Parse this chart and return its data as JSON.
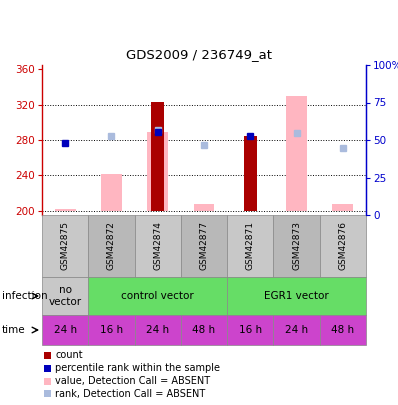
{
  "title": "GDS2009 / 236749_at",
  "samples": [
    "GSM42875",
    "GSM42872",
    "GSM42874",
    "GSM42877",
    "GSM42871",
    "GSM42873",
    "GSM42876"
  ],
  "ylim_left": [
    195,
    365
  ],
  "ylim_right": [
    0,
    100
  ],
  "yticks_left": [
    200,
    240,
    280,
    320,
    360
  ],
  "yticks_right": [
    0,
    25,
    50,
    75,
    100
  ],
  "yticklabels_right": [
    "0",
    "25",
    "50",
    "75",
    "100%"
  ],
  "count_values": [
    null,
    null,
    323,
    null,
    284,
    null,
    null
  ],
  "count_color": "#AA0000",
  "rank_values": [
    277,
    null,
    289,
    null,
    284,
    null,
    null
  ],
  "rank_color": "#0000BB",
  "absent_value_values": [
    202,
    241,
    289,
    208,
    null,
    330,
    207
  ],
  "absent_value_color": "#FFB6C1",
  "absent_rank_values": [
    null,
    284,
    291,
    274,
    null,
    288,
    271
  ],
  "absent_rank_color": "#AABBDD",
  "time_labels": [
    "24 h",
    "16 h",
    "24 h",
    "48 h",
    "16 h",
    "24 h",
    "48 h"
  ],
  "time_bg": "#CC44CC",
  "legend_items": [
    {
      "color": "#AA0000",
      "label": "count"
    },
    {
      "color": "#0000BB",
      "label": "percentile rank within the sample"
    },
    {
      "color": "#FFB6C1",
      "label": "value, Detection Call = ABSENT"
    },
    {
      "color": "#AABBDD",
      "label": "rank, Detection Call = ABSENT"
    }
  ],
  "left_axis_color": "#CC0000",
  "right_axis_color": "#0000CC",
  "sample_bg_even": "#C8C8C8",
  "sample_bg_odd": "#B8B8B8",
  "infect_gray_bg": "#C8C8C8",
  "infect_green_bg": "#66DD66"
}
